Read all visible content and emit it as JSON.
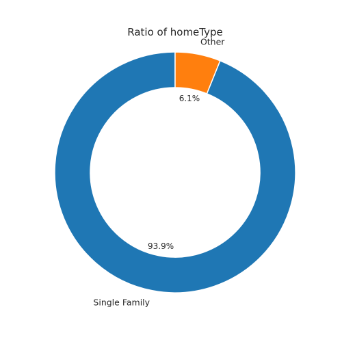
{
  "chart_data": {
    "type": "pie",
    "style": "donut",
    "title": "Ratio of homeType",
    "categories": [
      "Single Family",
      "Other"
    ],
    "values": [
      93.9,
      6.1
    ],
    "value_labels": [
      "93.9%",
      "6.1%"
    ],
    "colors": [
      "#1f77b4",
      "#ff7f0e"
    ],
    "start": "top",
    "direction": "counterclockwise",
    "legend": "none"
  }
}
